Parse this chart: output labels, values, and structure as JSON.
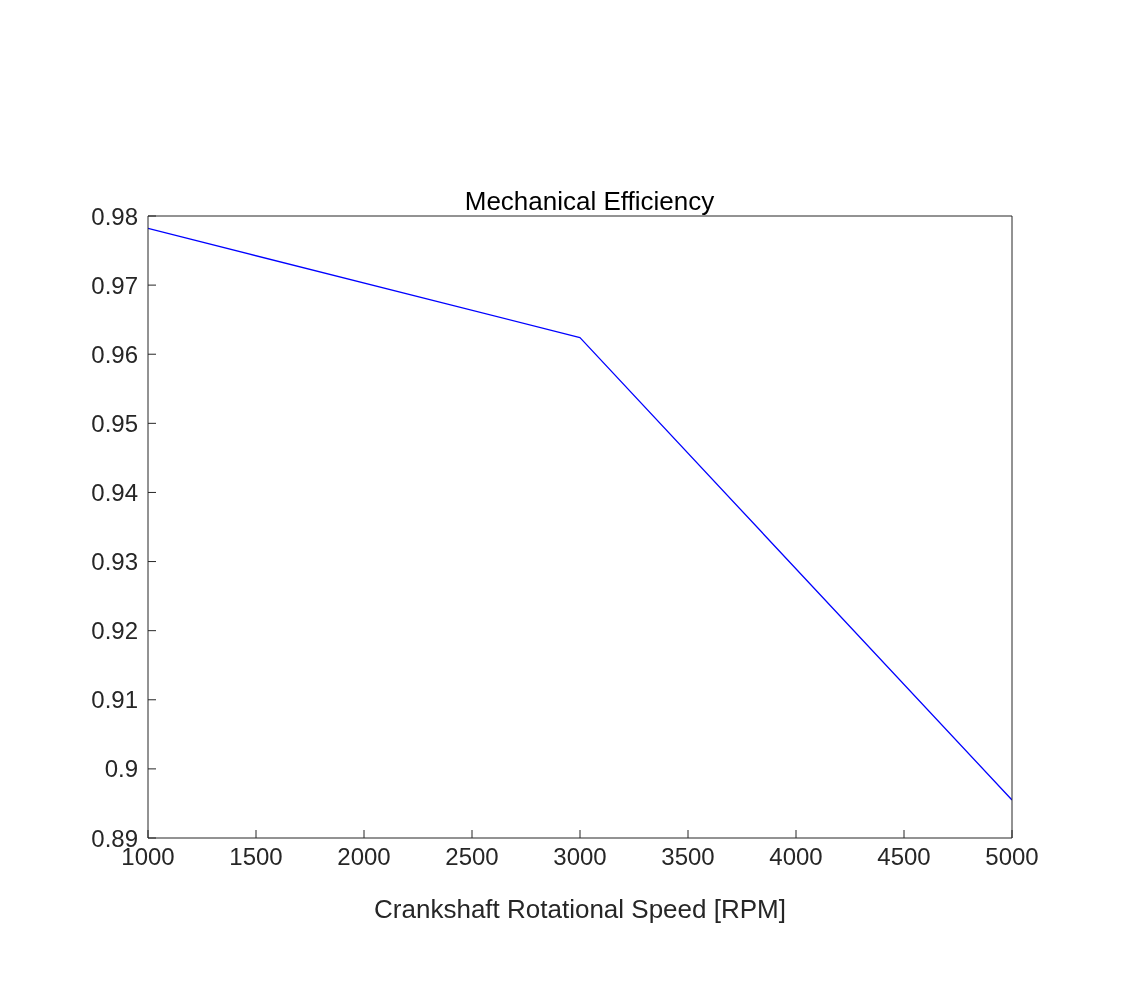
{
  "chart_data": {
    "type": "line",
    "title": "Mechanical Efficiency",
    "xlabel": "Crankshaft Rotational Speed [RPM]",
    "x": [
      1000,
      3000,
      5000
    ],
    "series": [
      {
        "color": "#0000ff",
        "values": [
          0.9782,
          0.9624,
          0.8955
        ]
      }
    ],
    "xlim": [
      1000,
      5000
    ],
    "xticks": [
      1000,
      1500,
      2000,
      2500,
      3000,
      3500,
      4000,
      4500,
      5000
    ],
    "ylim": [
      0.89,
      0.98
    ],
    "yticks": [
      0.89,
      0.9,
      0.91,
      0.92,
      0.93,
      0.94,
      0.95,
      0.96,
      0.97,
      0.98
    ],
    "grid": false,
    "marker": "none",
    "line_style": "solid"
  }
}
